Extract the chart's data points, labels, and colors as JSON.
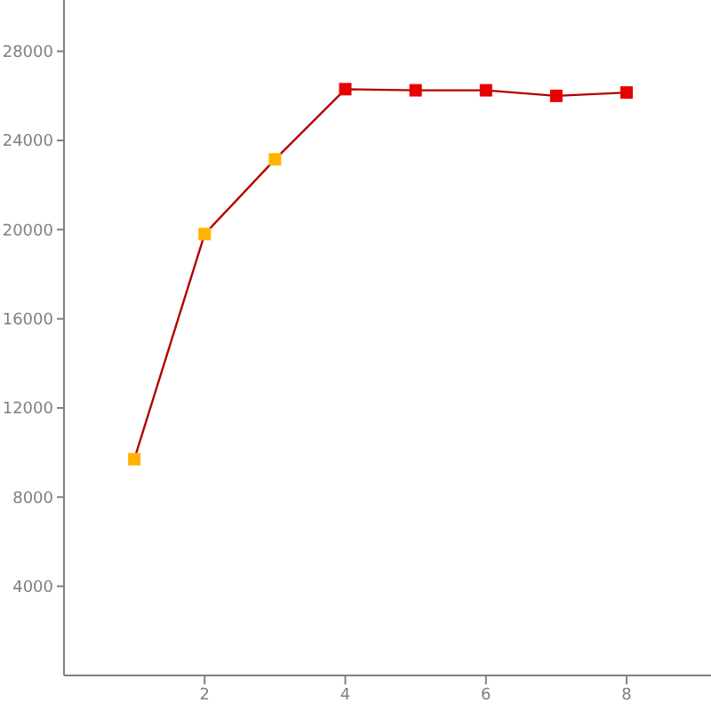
{
  "chart_data": {
    "type": "line",
    "xlim": [
      0,
      9.2
    ],
    "xticks": [
      2,
      4,
      6,
      8
    ],
    "ylim": [
      0,
      30300
    ],
    "yticks": [
      4000,
      8000,
      12000,
      16000,
      20000,
      24000,
      28000
    ],
    "grid": false,
    "legend": false,
    "series": [
      {
        "x": [
          1,
          2,
          3,
          4,
          5,
          6,
          7,
          8
        ],
        "values": [
          9700,
          19800,
          23150,
          26300,
          26250,
          26250,
          26000,
          26150
        ],
        "color": "#b40000",
        "colors": [
          "#ffb300",
          "#ffb300",
          "#ffb300",
          "#e60000",
          "#e60000",
          "#e60000",
          "#e60000",
          "#e60000"
        ],
        "marker": "square"
      }
    ]
  }
}
